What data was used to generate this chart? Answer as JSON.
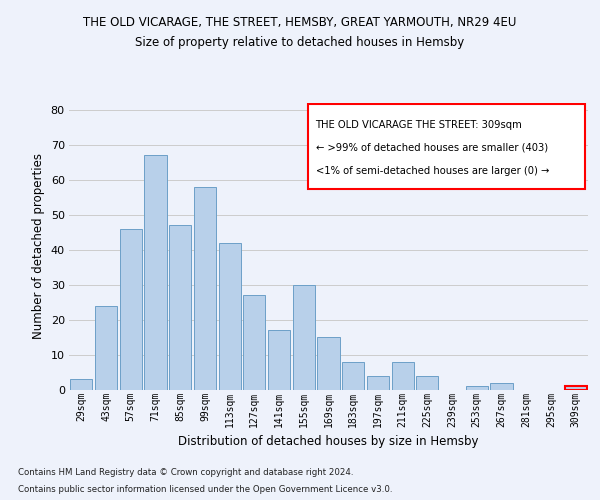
{
  "title1": "THE OLD VICARAGE, THE STREET, HEMSBY, GREAT YARMOUTH, NR29 4EU",
  "title2": "Size of property relative to detached houses in Hemsby",
  "xlabel": "Distribution of detached houses by size in Hemsby",
  "ylabel": "Number of detached properties",
  "categories": [
    "29sqm",
    "43sqm",
    "57sqm",
    "71sqm",
    "85sqm",
    "99sqm",
    "113sqm",
    "127sqm",
    "141sqm",
    "155sqm",
    "169sqm",
    "183sqm",
    "197sqm",
    "211sqm",
    "225sqm",
    "239sqm",
    "253sqm",
    "267sqm",
    "281sqm",
    "295sqm",
    "309sqm"
  ],
  "values": [
    3,
    24,
    46,
    67,
    47,
    58,
    42,
    27,
    17,
    30,
    15,
    8,
    4,
    8,
    4,
    0,
    1,
    2,
    0,
    0,
    1
  ],
  "bar_color": "#B8D0EA",
  "bar_edge_color": "#6CA0C8",
  "highlight_bar_index": 20,
  "highlight_edge_color": "#FF0000",
  "annotation_box_edge": "#FF0000",
  "annotation_lines": [
    "THE OLD VICARAGE THE STREET: 309sqm",
    "← >99% of detached houses are smaller (403)",
    "<1% of semi-detached houses are larger (0) →"
  ],
  "ylim": [
    0,
    82
  ],
  "yticks": [
    0,
    10,
    20,
    30,
    40,
    50,
    60,
    70,
    80
  ],
  "footer1": "Contains HM Land Registry data © Crown copyright and database right 2024.",
  "footer2": "Contains public sector information licensed under the Open Government Licence v3.0.",
  "background_color": "#EEF2FB",
  "grid_color": "#CCCCCC"
}
